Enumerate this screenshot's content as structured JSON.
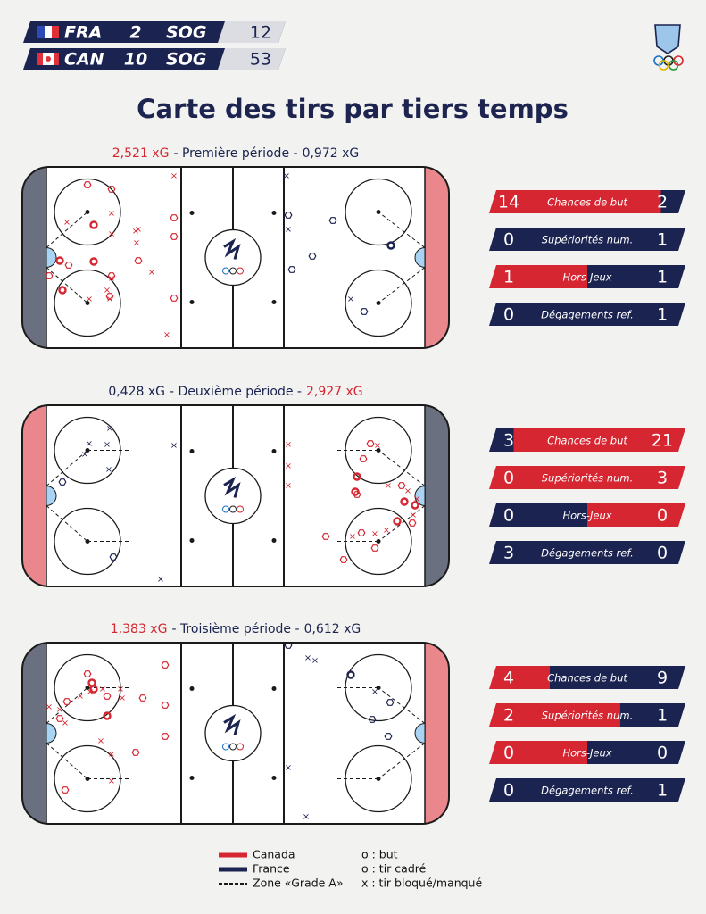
{
  "scoreboard": [
    {
      "team": "FRA",
      "goals": 2,
      "sog_label": "SOG",
      "sog": 12
    },
    {
      "team": "CAN",
      "goals": 10,
      "sog_label": "SOG",
      "sog": 53
    }
  ],
  "title": "Carte des tirs par tiers temps",
  "colors": {
    "canada": "#d62631",
    "france": "#1b2350"
  },
  "periods": [
    {
      "xg_left": "2,521 xG",
      "label": "- Première période -",
      "xg_right": "0,972 xG",
      "left_team": "canada",
      "right_team": "france",
      "left_end_color": "#6b7080",
      "right_end_color": "#e9878c",
      "stats": [
        {
          "label": "Chances de but",
          "left": 14,
          "right": 2
        },
        {
          "label": "Supériorités num.",
          "left": 0,
          "right": 1
        },
        {
          "label": "Hors-Jeux",
          "left": 1,
          "right": 1
        },
        {
          "label": "Dégagements ref.",
          "left": 0,
          "right": 1
        }
      ]
    },
    {
      "xg_left": "0,428 xG",
      "label": "- Deuxième période -",
      "xg_right": "2,927 xG",
      "left_team": "france",
      "right_team": "canada",
      "left_end_color": "#e9878c",
      "right_end_color": "#6b7080",
      "stats": [
        {
          "label": "Chances de but",
          "left": 3,
          "right": 21
        },
        {
          "label": "Supériorités num.",
          "left": 0,
          "right": 3
        },
        {
          "label": "Hors-Jeux",
          "left": 0,
          "right": 0
        },
        {
          "label": "Dégagements ref.",
          "left": 3,
          "right": 0
        }
      ]
    },
    {
      "xg_left": "1,383 xG",
      "label": "- Troisième période -",
      "xg_right": "0,612 xG",
      "left_team": "canada",
      "right_team": "france",
      "left_end_color": "#6b7080",
      "right_end_color": "#e9878c",
      "stats": [
        {
          "label": "Chances de but",
          "left": 4,
          "right": 9
        },
        {
          "label": "Supériorités num.",
          "left": 2,
          "right": 1
        },
        {
          "label": "Hors-Jeux",
          "left": 0,
          "right": 0
        },
        {
          "label": "Dégagements ref.",
          "left": 0,
          "right": 1
        }
      ]
    }
  ],
  "legend": {
    "canada": "Canada",
    "france": "France",
    "zone": "Zone «Grade A»",
    "goal": "o : but",
    "on_target": "o : tir cadré",
    "blocked": "x : tir bloqué/manqué"
  }
}
